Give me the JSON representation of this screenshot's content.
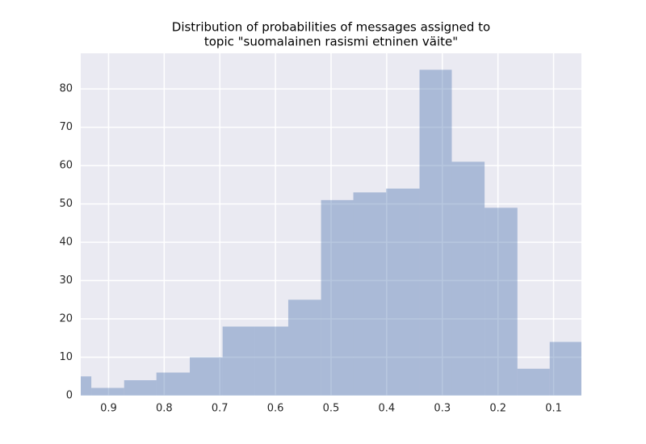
{
  "chart_data": {
    "type": "histogram",
    "title": [
      "Distribution of probabilities of messages assigned to",
      "topic \"suomalainen rasismi etninen väite\""
    ],
    "bins": [
      0.05,
      0.107,
      0.165,
      0.224,
      0.283,
      0.341,
      0.401,
      0.46,
      0.518,
      0.577,
      0.637,
      0.695,
      0.754,
      0.814,
      0.872,
      0.931,
      0.99
    ],
    "values": [
      14,
      7,
      49,
      61,
      85,
      54,
      53,
      51,
      25,
      18,
      18,
      10,
      6,
      4,
      2,
      5
    ],
    "color": "#4c72b0",
    "opacity": 0.4,
    "xlim": [
      0.95,
      0.05
    ],
    "xticks": [
      0.9,
      0.8,
      0.7,
      0.6,
      0.5,
      0.4,
      0.3,
      0.2,
      0.1
    ],
    "ylim": [
      0,
      89.3
    ],
    "yticks": [
      0,
      10,
      20,
      30,
      40,
      50,
      60,
      70,
      80
    ],
    "grid": true
  }
}
